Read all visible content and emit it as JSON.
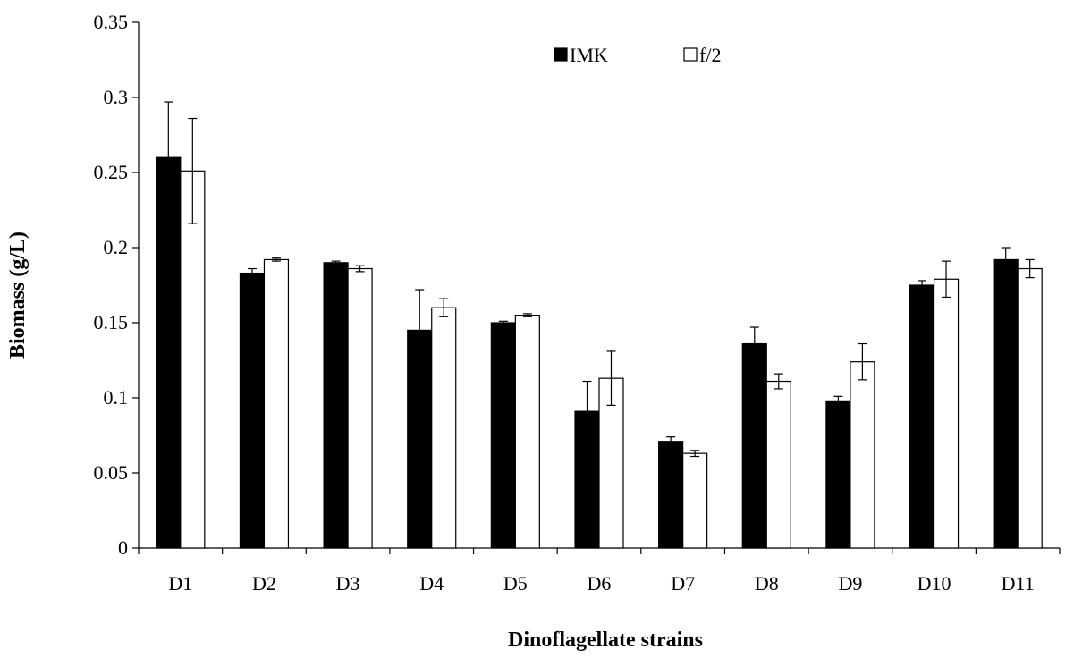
{
  "chart_data": {
    "type": "bar",
    "title": "",
    "xlabel": "Dinoflagellate strains",
    "ylabel": "Biomass (g/L)",
    "ylim": [
      0,
      0.35
    ],
    "yticks": [
      0,
      0.05,
      0.1,
      0.15,
      0.2,
      0.25,
      0.3,
      0.35
    ],
    "ytick_labels": [
      "0",
      "0.05",
      "0.1",
      "0.15",
      "0.2",
      "0.25",
      "0.3",
      "0.35"
    ],
    "categories": [
      "D1",
      "D2",
      "D3",
      "D4",
      "D5",
      "D6",
      "D7",
      "D8",
      "D9",
      "D10",
      "D11"
    ],
    "series": [
      {
        "name": "IMK",
        "color": "#000000",
        "values": [
          0.26,
          0.183,
          0.19,
          0.145,
          0.15,
          0.091,
          0.071,
          0.136,
          0.098,
          0.175,
          0.192
        ],
        "errors": [
          0.037,
          0.003,
          0.001,
          0.027,
          0.001,
          0.02,
          0.003,
          0.011,
          0.003,
          0.003,
          0.008
        ]
      },
      {
        "name": "f/2",
        "color": "#ffffff",
        "values": [
          0.251,
          0.192,
          0.186,
          0.16,
          0.155,
          0.113,
          0.063,
          0.111,
          0.124,
          0.179,
          0.186
        ],
        "errors": [
          0.035,
          0.001,
          0.002,
          0.006,
          0.001,
          0.018,
          0.002,
          0.005,
          0.012,
          0.012,
          0.006
        ]
      }
    ],
    "legend": "top-center",
    "grid": false
  }
}
